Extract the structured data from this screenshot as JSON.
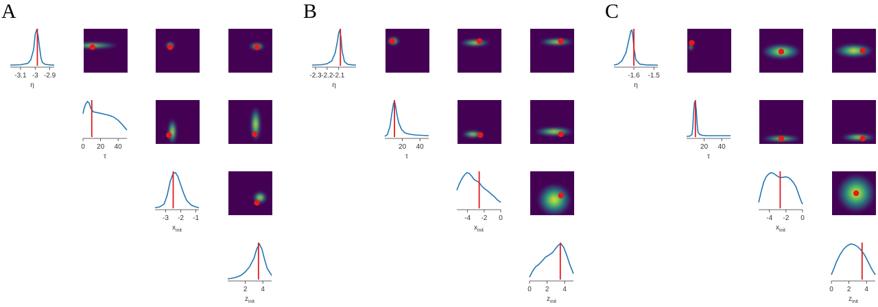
{
  "figure": {
    "colors": {
      "density_line": "#1f77b4",
      "truth_marker": "#e41a1c",
      "heatmap_background": "#440154",
      "heatmap_colormap": "viridis"
    }
  },
  "chart_data": [
    {
      "panel": "A",
      "type": "pairplot",
      "variables": [
        {
          "label": "η",
          "sub": "",
          "ticks": [
            -3.1,
            -3.0,
            -2.9
          ],
          "tick_labels": [
            "-3.1",
            "-3",
            "-2.9"
          ],
          "range": [
            -3.17,
            -2.87
          ],
          "truth": -2.985,
          "density_x": [
            -3.17,
            -3.1,
            -3.05,
            -3.03,
            -3.01,
            -3.0,
            -2.99,
            -2.98,
            -2.97,
            -2.96,
            -2.95,
            -2.93,
            -2.9,
            -2.87
          ],
          "density_y": [
            0.0,
            0.01,
            0.05,
            0.15,
            0.45,
            0.88,
            1.0,
            0.85,
            0.5,
            0.2,
            0.07,
            0.02,
            0.005,
            0.0
          ]
        },
        {
          "label": "τ",
          "sub": "",
          "ticks": [
            0,
            20,
            40
          ],
          "tick_labels": [
            "0",
            "20",
            "40"
          ],
          "range": [
            0,
            50
          ],
          "truth": 10,
          "density_x": [
            0,
            1,
            3,
            5,
            7,
            9,
            12,
            16,
            20,
            25,
            30,
            35,
            40,
            45,
            50
          ],
          "density_y": [
            0.65,
            0.78,
            0.92,
            1.0,
            0.95,
            0.8,
            0.7,
            0.68,
            0.66,
            0.63,
            0.6,
            0.55,
            0.46,
            0.33,
            0.18
          ]
        },
        {
          "label": "x",
          "sub": "init",
          "ticks": [
            -3,
            -2,
            -1
          ],
          "tick_labels": [
            "-3",
            "-2",
            "-1"
          ],
          "range": [
            -3.7,
            -0.8
          ],
          "truth": -2.5,
          "density_x": [
            -3.7,
            -3.4,
            -3.1,
            -2.9,
            -2.7,
            -2.5,
            -2.35,
            -2.2,
            -2.0,
            -1.8,
            -1.6,
            -1.3,
            -1.0,
            -0.8
          ],
          "density_y": [
            0.0,
            0.02,
            0.1,
            0.35,
            0.75,
            0.98,
            1.0,
            0.9,
            0.65,
            0.4,
            0.2,
            0.07,
            0.02,
            0.0
          ]
        },
        {
          "label": "z",
          "sub": "init",
          "ticks": [
            2,
            4
          ],
          "tick_labels": [
            "2",
            "4"
          ],
          "range": [
            0,
            5
          ],
          "truth": 3.5,
          "density_x": [
            0,
            0.5,
            1.0,
            1.5,
            2.0,
            2.5,
            3.0,
            3.3,
            3.6,
            3.9,
            4.2,
            4.5,
            5.0
          ],
          "density_y": [
            0.0,
            0.02,
            0.05,
            0.1,
            0.2,
            0.35,
            0.6,
            0.85,
            1.0,
            0.85,
            0.55,
            0.3,
            0.1
          ]
        }
      ],
      "pairs": [
        {
          "row": 0,
          "col": 1,
          "mode": [
            0.2,
            0.38
          ],
          "spread": [
            0.6,
            0.07
          ],
          "truth": [
            0.2,
            0.42
          ]
        },
        {
          "row": 0,
          "col": 2,
          "mode": [
            0.33,
            0.38
          ],
          "spread": [
            0.1,
            0.08
          ],
          "truth": [
            0.33,
            0.42
          ]
        },
        {
          "row": 0,
          "col": 3,
          "mode": [
            0.65,
            0.4
          ],
          "spread": [
            0.18,
            0.08
          ],
          "truth": [
            0.65,
            0.42
          ]
        },
        {
          "row": 1,
          "col": 2,
          "mode": [
            0.38,
            0.72
          ],
          "spread": [
            0.1,
            0.3
          ],
          "truth": [
            0.3,
            0.8
          ]
        },
        {
          "row": 1,
          "col": 3,
          "mode": [
            0.62,
            0.55
          ],
          "spread": [
            0.12,
            0.4
          ],
          "truth": [
            0.6,
            0.78
          ]
        },
        {
          "row": 2,
          "col": 3,
          "mode": [
            0.72,
            0.6
          ],
          "spread": [
            0.16,
            0.14
          ],
          "truth": [
            0.65,
            0.72
          ]
        }
      ]
    },
    {
      "panel": "B",
      "type": "pairplot",
      "variables": [
        {
          "label": "η",
          "sub": "",
          "ticks": [
            -2.3,
            -2.2,
            -2.1
          ],
          "tick_labels": [
            "-2.3",
            "-2.2",
            "-2.1"
          ],
          "range": [
            -2.33,
            -1.95
          ],
          "truth": -2.085,
          "density_x": [
            -2.33,
            -2.25,
            -2.2,
            -2.16,
            -2.13,
            -2.11,
            -2.1,
            -2.09,
            -2.08,
            -2.07,
            -2.05,
            -2.02,
            -1.98,
            -1.95
          ],
          "density_y": [
            0.0,
            0.01,
            0.04,
            0.12,
            0.35,
            0.7,
            0.92,
            1.0,
            0.8,
            0.4,
            0.1,
            0.02,
            0.005,
            0.0
          ]
        },
        {
          "label": "τ",
          "sub": "",
          "ticks": [
            20,
            40
          ],
          "tick_labels": [
            "20",
            "40"
          ],
          "range": [
            0,
            50
          ],
          "truth": 11,
          "density_x": [
            0,
            3,
            6,
            8,
            10,
            11,
            12,
            14,
            16,
            19,
            23,
            28,
            35,
            42,
            50
          ],
          "density_y": [
            0.0,
            0.05,
            0.3,
            0.65,
            0.95,
            1.0,
            0.9,
            0.6,
            0.38,
            0.2,
            0.1,
            0.06,
            0.04,
            0.03,
            0.02
          ]
        },
        {
          "label": "x",
          "sub": "init",
          "ticks": [
            -4,
            -2,
            0
          ],
          "tick_labels": [
            "-4",
            "-2",
            "0"
          ],
          "range": [
            -5.3,
            0
          ],
          "truth": -2.6,
          "density_x": [
            -5.3,
            -5.0,
            -4.7,
            -4.4,
            -4.1,
            -3.8,
            -3.5,
            -3.2,
            -2.9,
            -2.6,
            -2.3,
            -2.0,
            -1.6,
            -1.2,
            -0.8,
            -0.4,
            0
          ],
          "density_y": [
            0.5,
            0.68,
            0.82,
            0.93,
            1.0,
            0.98,
            0.9,
            0.8,
            0.76,
            0.72,
            0.62,
            0.55,
            0.48,
            0.4,
            0.32,
            0.22,
            0.15
          ]
        },
        {
          "label": "z",
          "sub": "init",
          "ticks": [
            0,
            2,
            4
          ],
          "tick_labels": [
            "0",
            "2",
            "4"
          ],
          "range": [
            0,
            5
          ],
          "truth": 3.5,
          "density_x": [
            0,
            0.3,
            0.7,
            1.0,
            1.4,
            1.8,
            2.2,
            2.6,
            3.0,
            3.3,
            3.6,
            3.9,
            4.2,
            4.6,
            5.0
          ],
          "density_y": [
            0.05,
            0.2,
            0.35,
            0.4,
            0.5,
            0.62,
            0.68,
            0.75,
            0.88,
            0.97,
            1.0,
            0.9,
            0.7,
            0.4,
            0.15
          ]
        }
      ],
      "pairs": [
        {
          "row": 0,
          "col": 1,
          "mode": [
            0.18,
            0.28
          ],
          "spread": [
            0.14,
            0.1
          ],
          "truth": [
            0.15,
            0.28
          ]
        },
        {
          "row": 0,
          "col": 2,
          "mode": [
            0.4,
            0.32
          ],
          "spread": [
            0.35,
            0.08
          ],
          "truth": [
            0.5,
            0.28
          ]
        },
        {
          "row": 0,
          "col": 3,
          "mode": [
            0.6,
            0.3
          ],
          "spread": [
            0.4,
            0.08
          ],
          "truth": [
            0.7,
            0.28
          ]
        },
        {
          "row": 1,
          "col": 2,
          "mode": [
            0.35,
            0.78
          ],
          "spread": [
            0.25,
            0.08
          ],
          "truth": [
            0.52,
            0.8
          ]
        },
        {
          "row": 1,
          "col": 3,
          "mode": [
            0.55,
            0.72
          ],
          "spread": [
            0.45,
            0.1
          ],
          "truth": [
            0.7,
            0.78
          ]
        },
        {
          "row": 2,
          "col": 3,
          "mode": [
            0.55,
            0.65
          ],
          "spread": [
            0.4,
            0.38
          ],
          "truth": [
            0.7,
            0.55
          ]
        }
      ]
    },
    {
      "panel": "C",
      "type": "pairplot",
      "variables": [
        {
          "label": "η",
          "sub": "",
          "ticks": [
            -1.6,
            -1.5
          ],
          "tick_labels": [
            "-1.6",
            "-1.5"
          ],
          "range": [
            -1.7,
            -1.48
          ],
          "truth": -1.6,
          "density_x": [
            -1.7,
            -1.68,
            -1.66,
            -1.64,
            -1.63,
            -1.62,
            -1.615,
            -1.61,
            -1.605,
            -1.6,
            -1.59,
            -1.57,
            -1.54,
            -1.48
          ],
          "density_y": [
            0.0,
            0.03,
            0.12,
            0.35,
            0.6,
            0.85,
            0.98,
            1.0,
            0.85,
            0.5,
            0.15,
            0.03,
            0.005,
            0.0
          ]
        },
        {
          "label": "τ",
          "sub": "",
          "ticks": [
            20,
            40
          ],
          "tick_labels": [
            "20",
            "40"
          ],
          "range": [
            0,
            50
          ],
          "truth": 10,
          "density_x": [
            0,
            4,
            6,
            7,
            8,
            9,
            10,
            11,
            12,
            13,
            15,
            18,
            22,
            30,
            40,
            50
          ],
          "density_y": [
            0.0,
            0.01,
            0.05,
            0.25,
            0.7,
            0.98,
            1.0,
            0.75,
            0.35,
            0.12,
            0.05,
            0.03,
            0.02,
            0.02,
            0.02,
            0.02
          ]
        },
        {
          "label": "x",
          "sub": "init",
          "ticks": [
            -4,
            -2,
            0
          ],
          "tick_labels": [
            "-4",
            "-2",
            "0"
          ],
          "range": [
            -5.3,
            0
          ],
          "truth": -2.7,
          "density_x": [
            -5.3,
            -5.0,
            -4.7,
            -4.4,
            -4.1,
            -3.8,
            -3.5,
            -3.2,
            -2.9,
            -2.6,
            -2.3,
            -2.0,
            -1.7,
            -1.4,
            -1.1,
            -0.8,
            -0.5,
            -0.2,
            0
          ],
          "density_y": [
            0.15,
            0.45,
            0.72,
            0.88,
            0.96,
            1.0,
            0.98,
            0.93,
            0.88,
            0.86,
            0.87,
            0.88,
            0.86,
            0.8,
            0.72,
            0.6,
            0.4,
            0.2,
            0.1
          ]
        },
        {
          "label": "z",
          "sub": "init",
          "ticks": [
            0,
            2,
            4
          ],
          "tick_labels": [
            "0",
            "2",
            "4"
          ],
          "range": [
            0,
            5
          ],
          "truth": 3.5,
          "density_x": [
            0,
            0.3,
            0.6,
            1.0,
            1.4,
            1.8,
            2.2,
            2.6,
            3.0,
            3.4,
            3.8,
            4.2,
            4.6,
            5.0
          ],
          "density_y": [
            0.12,
            0.3,
            0.5,
            0.7,
            0.85,
            0.95,
            1.0,
            0.98,
            0.92,
            0.82,
            0.68,
            0.48,
            0.28,
            0.12
          ]
        }
      ],
      "pairs": [
        {
          "row": 0,
          "col": 1,
          "mode": [
            0.08,
            0.42
          ],
          "spread": [
            0.04,
            0.08
          ],
          "truth": [
            0.1,
            0.32
          ]
        },
        {
          "row": 0,
          "col": 2,
          "mode": [
            0.5,
            0.52
          ],
          "spread": [
            0.45,
            0.18
          ],
          "truth": [
            0.5,
            0.52
          ]
        },
        {
          "row": 0,
          "col": 3,
          "mode": [
            0.5,
            0.5
          ],
          "spread": [
            0.45,
            0.16
          ],
          "truth": [
            0.7,
            0.5
          ]
        },
        {
          "row": 1,
          "col": 2,
          "mode": [
            0.5,
            0.88
          ],
          "spread": [
            0.45,
            0.07
          ],
          "truth": [
            0.5,
            0.88
          ]
        },
        {
          "row": 1,
          "col": 3,
          "mode": [
            0.6,
            0.85
          ],
          "spread": [
            0.4,
            0.08
          ],
          "truth": [
            0.7,
            0.88
          ]
        },
        {
          "row": 2,
          "col": 3,
          "mode": [
            0.55,
            0.5
          ],
          "spread": [
            0.45,
            0.45
          ],
          "truth": [
            0.55,
            0.5
          ]
        }
      ]
    }
  ]
}
